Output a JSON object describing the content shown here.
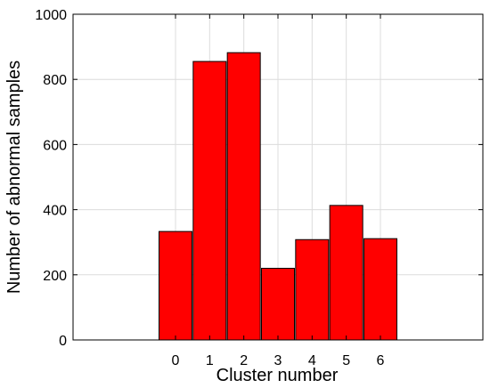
{
  "chart_data": {
    "type": "bar",
    "title": "",
    "xlabel": "Cluster number",
    "ylabel": "Number of abnormal samples",
    "categories": [
      "0",
      "1",
      "2",
      "3",
      "4",
      "5",
      "6"
    ],
    "values": [
      333,
      855,
      882,
      220,
      308,
      413,
      311
    ],
    "x_positions": [
      0,
      1,
      2,
      3,
      4,
      5,
      6
    ],
    "xlim": [
      -3,
      9
    ],
    "ylim": [
      0,
      1000
    ],
    "yticks": [
      0,
      200,
      400,
      600,
      800,
      1000
    ],
    "ytick_labels": [
      "0",
      "200",
      "400",
      "600",
      "800",
      "1000"
    ],
    "grid": true,
    "legend": "none",
    "colors": {
      "bar_fill": "#ff0000",
      "bar_edge": "#000000",
      "grid": "#dcdcdc",
      "axis": "#000000"
    }
  }
}
